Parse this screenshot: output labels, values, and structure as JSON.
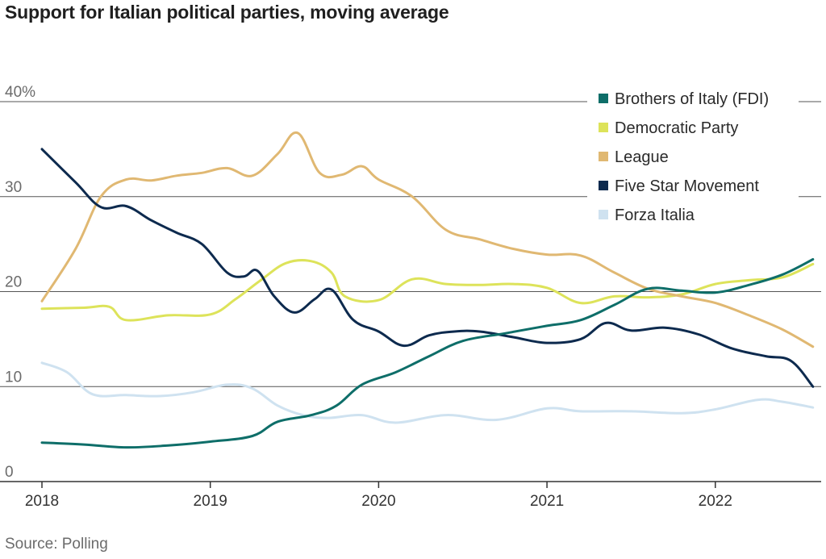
{
  "title": "Support for Italian political parties, moving average",
  "source": "Source: Polling",
  "chart_data": {
    "type": "line",
    "title": "Support for Italian political parties, moving average",
    "xlabel": "",
    "ylabel": "",
    "xlim": [
      2018.0,
      2022.6
    ],
    "ylim": [
      0,
      40
    ],
    "x_ticks": [
      2018,
      2019,
      2020,
      2021,
      2022
    ],
    "x_tick_labels": [
      "2018",
      "2019",
      "2020",
      "2021",
      "2022"
    ],
    "y_ticks": [
      0,
      10,
      20,
      30,
      40
    ],
    "y_tick_labels": [
      "0",
      "10",
      "20",
      "30",
      "40%"
    ],
    "grid": "horizontal",
    "legend_position": "top-right",
    "series": [
      {
        "name": "Brothers of Italy (FDI)",
        "color": "#0e6e69",
        "x": [
          2018.0,
          2018.25,
          2018.5,
          2018.75,
          2019.0,
          2019.25,
          2019.4,
          2019.6,
          2019.75,
          2019.9,
          2020.1,
          2020.3,
          2020.5,
          2020.75,
          2021.0,
          2021.2,
          2021.4,
          2021.6,
          2021.8,
          2022.0,
          2022.2,
          2022.4,
          2022.58
        ],
        "y": [
          4.1,
          3.9,
          3.6,
          3.8,
          4.2,
          4.8,
          6.3,
          7.0,
          8.0,
          10.2,
          11.5,
          13.2,
          14.8,
          15.6,
          16.4,
          17.0,
          18.6,
          20.3,
          20.1,
          19.9,
          20.7,
          21.8,
          23.4
        ]
      },
      {
        "name": "Democratic Party",
        "color": "#dde35a",
        "x": [
          2018.0,
          2018.25,
          2018.4,
          2018.5,
          2018.75,
          2019.0,
          2019.15,
          2019.3,
          2019.45,
          2019.6,
          2019.72,
          2019.8,
          2020.0,
          2020.2,
          2020.4,
          2020.6,
          2020.8,
          2021.0,
          2021.2,
          2021.4,
          2021.6,
          2021.8,
          2022.0,
          2022.2,
          2022.4,
          2022.58
        ],
        "y": [
          18.2,
          18.3,
          18.4,
          17.0,
          17.5,
          17.6,
          19.2,
          21.2,
          23.0,
          23.2,
          22.0,
          19.5,
          19.1,
          21.3,
          20.8,
          20.7,
          20.8,
          20.4,
          18.8,
          19.5,
          19.4,
          19.7,
          20.8,
          21.2,
          21.5,
          22.9
        ]
      },
      {
        "name": "League",
        "color": "#e0b872",
        "x": [
          2018.0,
          2018.2,
          2018.35,
          2018.5,
          2018.65,
          2018.8,
          2018.95,
          2019.1,
          2019.25,
          2019.4,
          2019.52,
          2019.65,
          2019.78,
          2019.9,
          2020.0,
          2020.2,
          2020.4,
          2020.6,
          2020.8,
          2021.0,
          2021.2,
          2021.4,
          2021.6,
          2021.8,
          2022.0,
          2022.2,
          2022.4,
          2022.58
        ],
        "y": [
          19.0,
          24.5,
          30.0,
          31.8,
          31.7,
          32.2,
          32.5,
          33.0,
          32.2,
          34.5,
          36.7,
          32.5,
          32.3,
          33.2,
          31.8,
          30.0,
          26.5,
          25.5,
          24.5,
          23.9,
          23.8,
          22.0,
          20.3,
          19.5,
          18.8,
          17.5,
          16.0,
          14.2
        ]
      },
      {
        "name": "Five Star Movement",
        "color": "#0d2a4e",
        "x": [
          2018.0,
          2018.2,
          2018.35,
          2018.5,
          2018.65,
          2018.8,
          2018.95,
          2019.1,
          2019.2,
          2019.28,
          2019.38,
          2019.5,
          2019.62,
          2019.72,
          2019.85,
          2020.0,
          2020.15,
          2020.3,
          2020.45,
          2020.6,
          2020.8,
          2021.0,
          2021.2,
          2021.35,
          2021.5,
          2021.7,
          2021.9,
          2022.1,
          2022.3,
          2022.45,
          2022.58
        ],
        "y": [
          35.0,
          31.5,
          28.9,
          29.0,
          27.5,
          26.2,
          25.0,
          22.0,
          21.6,
          22.2,
          19.5,
          17.8,
          19.2,
          20.2,
          17.0,
          15.8,
          14.3,
          15.4,
          15.8,
          15.8,
          15.2,
          14.6,
          15.0,
          16.7,
          15.9,
          16.2,
          15.5,
          14.0,
          13.2,
          12.7,
          10.0
        ]
      },
      {
        "name": "Forza Italia",
        "color": "#cfe2f0",
        "x": [
          2018.0,
          2018.15,
          2018.3,
          2018.5,
          2018.7,
          2018.9,
          2019.1,
          2019.25,
          2019.4,
          2019.55,
          2019.7,
          2019.9,
          2020.1,
          2020.4,
          2020.7,
          2021.0,
          2021.2,
          2021.5,
          2021.8,
          2022.0,
          2022.25,
          2022.4,
          2022.58
        ],
        "y": [
          12.5,
          11.5,
          9.2,
          9.1,
          9.0,
          9.4,
          10.2,
          9.8,
          8.0,
          7.0,
          6.7,
          7.0,
          6.2,
          7.0,
          6.5,
          7.7,
          7.4,
          7.4,
          7.2,
          7.6,
          8.6,
          8.4,
          7.8
        ]
      }
    ]
  }
}
